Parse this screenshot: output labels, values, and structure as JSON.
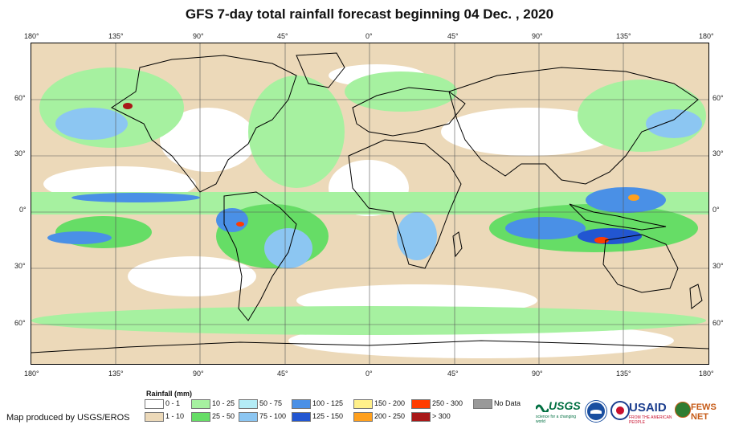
{
  "title": "GFS 7-day total rainfall forecast beginning 04 Dec. , 2020",
  "top_lon_labels": [
    "180°",
    "135°",
    "90°",
    "45°",
    "0°",
    "45°",
    "90°",
    "135°",
    "180°"
  ],
  "bottom_lon_labels": [
    "180°",
    "135°",
    "90°",
    "45°",
    "0°",
    "45°",
    "90°",
    "135°",
    "180°"
  ],
  "left_lat_labels": [
    "60°",
    "30°",
    "0°",
    "30°",
    "60°"
  ],
  "right_lat_labels": [
    "60°",
    "30°",
    "0°",
    "30°",
    "60°"
  ],
  "legend": {
    "title": "Rainfall (mm)",
    "items": [
      {
        "label": "0 - 1",
        "color": "#ffffff"
      },
      {
        "label": "1 - 10",
        "color": "#ecd9b9"
      },
      {
        "label": "10 - 25",
        "color": "#a6f1a0"
      },
      {
        "label": "25 - 50",
        "color": "#66dd66"
      },
      {
        "label": "50 - 75",
        "color": "#b4ecf6"
      },
      {
        "label": "75 - 100",
        "color": "#8cc6f2"
      },
      {
        "label": "100 - 125",
        "color": "#4a90e6"
      },
      {
        "label": "125 - 150",
        "color": "#2256d1"
      },
      {
        "label": "150 - 200",
        "color": "#fff08a"
      },
      {
        "label": "200 - 250",
        "color": "#ffa01e"
      },
      {
        "label": "250 - 300",
        "color": "#ff3c00"
      },
      {
        "label": "> 300",
        "color": "#a81818"
      },
      {
        "label": "No Data",
        "color": "#999999"
      }
    ]
  },
  "credit": "Map produced by USGS/EROS",
  "logos": {
    "usgs": "USGS",
    "usgs_tag": "science for a changing world",
    "usaid": "USAID",
    "usaid_tag": "FROM THE AMERICAN PEOPLE",
    "fewsnet": "FEWS NET"
  },
  "colors": {
    "land_outline": "#000000",
    "grid": "#555555"
  }
}
